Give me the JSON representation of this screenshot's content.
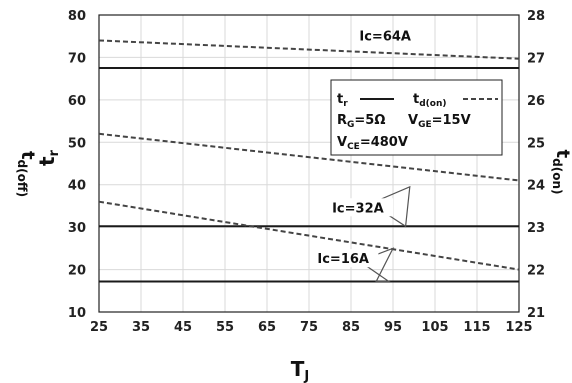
{
  "chart_data": {
    "type": "line",
    "x_axis": {
      "label": "T",
      "label_subscript": "J",
      "min": 25,
      "max": 125,
      "ticks": [
        "25",
        "35",
        "45",
        "55",
        "65",
        "75",
        "85",
        "95",
        "105",
        "115",
        "125"
      ]
    },
    "y_left": {
      "label_top": "t",
      "label_top_sub": "r",
      "label_bottom": "t",
      "label_bottom_sub": "d(off)",
      "min": 10,
      "max": 80,
      "ticks": [
        "10",
        "20",
        "30",
        "40",
        "50",
        "60",
        "70",
        "80"
      ]
    },
    "y_right": {
      "label": "t",
      "label_sub": "d(on)",
      "min": 21,
      "max": 28,
      "ticks": [
        "21",
        "22",
        "23",
        "24",
        "25",
        "26",
        "27",
        "28"
      ]
    },
    "series": [
      {
        "name": "t_r Ic=64A",
        "axis": "left",
        "style": "solid",
        "x": [
          25,
          125
        ],
        "y": [
          67.5,
          67.5
        ]
      },
      {
        "name": "t_r Ic=32A",
        "axis": "left",
        "style": "solid",
        "x": [
          25,
          125
        ],
        "y": [
          30.2,
          30.2
        ]
      },
      {
        "name": "t_r Ic=16A",
        "axis": "left",
        "style": "solid",
        "x": [
          25,
          125
        ],
        "y": [
          17.2,
          17.2
        ]
      },
      {
        "name": "t_d(on) Ic=64A",
        "axis": "right",
        "style": "dashed",
        "x": [
          25,
          125
        ],
        "y": [
          27.4,
          26.97
        ]
      },
      {
        "name": "t_d(on) Ic=32A",
        "axis": "right",
        "style": "dashed",
        "x": [
          25,
          125
        ],
        "y": [
          25.2,
          24.1
        ]
      },
      {
        "name": "t_d(on) Ic=16A",
        "axis": "right",
        "style": "dashed",
        "x": [
          25,
          125
        ],
        "y": [
          23.6,
          22.0
        ]
      }
    ],
    "annotations": [
      {
        "text": "Ic=64A",
        "x": 87,
        "y_left": 74
      },
      {
        "text": "Ic=32A",
        "x": 80.5,
        "y_left": 33.5,
        "pointer": [
          [
            84,
            34
          ],
          [
            89,
            36
          ],
          [
            98,
            30.2
          ],
          [
            99,
            39.5
          ],
          [
            86,
            34
          ]
        ]
      },
      {
        "text": "Ic=16A",
        "x": 77,
        "y_left": 21.5,
        "pointer": [
          [
            87,
            22
          ],
          [
            94,
            17.2
          ],
          [
            91,
            17.2
          ],
          [
            95,
            25
          ],
          [
            87,
            22
          ]
        ]
      }
    ],
    "legend": {
      "position": "right",
      "line1_label": "t",
      "line1_sub": "r",
      "line2_label": "t",
      "line2_sub": "d(on)",
      "conditions_1a": "R",
      "conditions_1a_sub": "G",
      "conditions_1a_val": "=5Ω",
      "conditions_1b": "V",
      "conditions_1b_sub": "GE",
      "conditions_1b_val": "=15V",
      "conditions_2": "V",
      "conditions_2_sub": "CE",
      "conditions_2_val": "=480V"
    },
    "grid": true,
    "colors": {
      "line": "#1a1a1a",
      "dash": "#444444",
      "grid": "#d9d9d9"
    }
  }
}
